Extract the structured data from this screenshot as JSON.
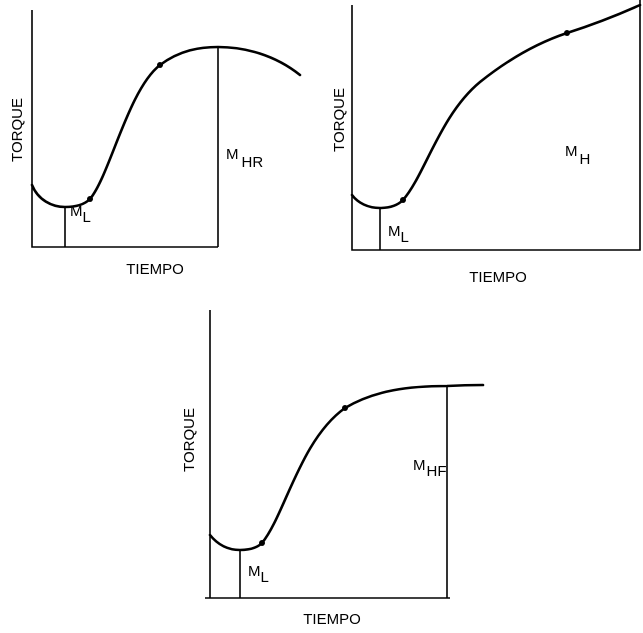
{
  "panels": [
    {
      "y_label": "TORQUE",
      "x_label": "TIEMPO",
      "labels": [
        {
          "main": "M",
          "sub": "L"
        },
        {
          "main": "M",
          "sub": "HR"
        }
      ]
    },
    {
      "y_label": "TORQUE",
      "x_label": "TIEMPO",
      "labels": [
        {
          "main": "M",
          "sub": "L"
        },
        {
          "main": "M",
          "sub": "H"
        }
      ]
    },
    {
      "y_label": "TORQUE",
      "x_label": "TIEMPO",
      "labels": [
        {
          "main": "M",
          "sub": "L"
        },
        {
          "main": "M",
          "sub": "HF"
        }
      ]
    }
  ]
}
